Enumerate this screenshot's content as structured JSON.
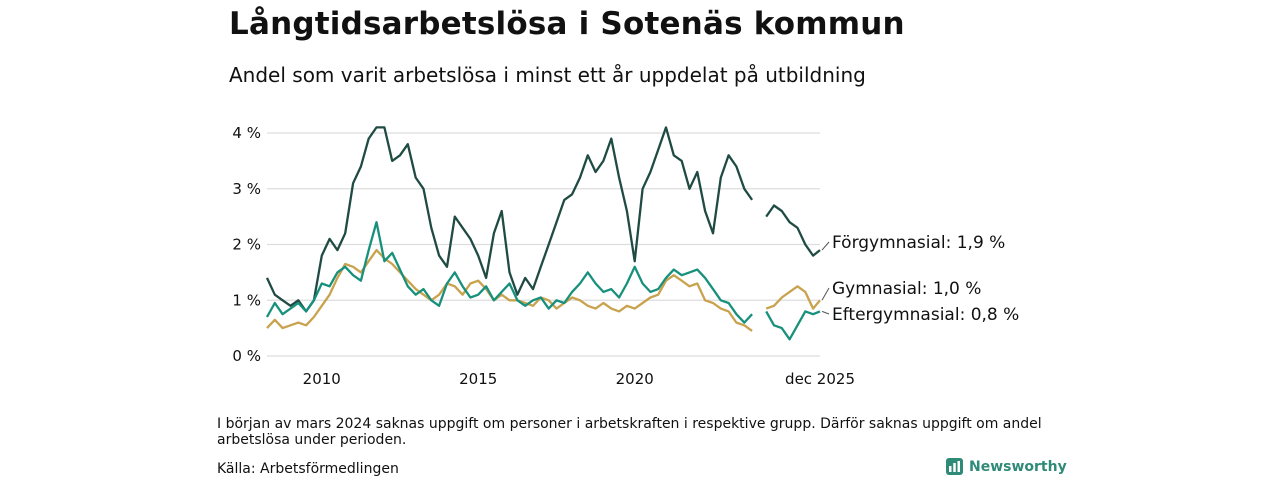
{
  "header": {
    "title": "Långtidsarbetslösa i Sotenäs kommun",
    "subtitle": "Andel som varit arbetslösa i minst ett år uppdelat på utbildning"
  },
  "footer": {
    "note": "I början av mars 2024 saknas uppgift om personer i arbetskraften i respektive grupp. Därför saknas uppgift om andel arbetslösa under perioden.",
    "source": "Källa: Arbetsförmedlingen",
    "brand": "Newsworthy"
  },
  "colors": {
    "forgymnasial": "#1f4b43",
    "gymnasial": "#c9a24e",
    "eftergymnasial": "#17907c",
    "grid": "#dddddd",
    "brand": "#2f8a78"
  },
  "chart_data": {
    "type": "line",
    "title": "Långtidsarbetslösa i Sotenäs kommun",
    "ylabel": "",
    "xlabel": "",
    "xlim": [
      2008.25,
      2025.92
    ],
    "ylim": [
      0,
      4
    ],
    "gap": [
      2023.8,
      2024.15
    ],
    "y_ticks": [
      {
        "value": 0,
        "label": "0 %"
      },
      {
        "value": 1,
        "label": "1 %"
      },
      {
        "value": 2,
        "label": "2 %"
      },
      {
        "value": 3,
        "label": "3 %"
      },
      {
        "value": 4,
        "label": "4 %"
      }
    ],
    "x_ticks": [
      {
        "value": 2010,
        "label": "2010"
      },
      {
        "value": 2015,
        "label": "2015"
      },
      {
        "value": 2020,
        "label": "2020"
      },
      {
        "value": 2025.92,
        "label": "dec 2025"
      }
    ],
    "series": [
      {
        "name": "Förgymnasial",
        "color_key": "forgymnasial",
        "end_label": "Förgymnasial: 1,9 %",
        "points": [
          [
            2008.25,
            1.4
          ],
          [
            2008.5,
            1.1
          ],
          [
            2008.75,
            1.0
          ],
          [
            2009.0,
            0.9
          ],
          [
            2009.25,
            1.0
          ],
          [
            2009.5,
            0.8
          ],
          [
            2009.75,
            1.0
          ],
          [
            2010.0,
            1.8
          ],
          [
            2010.25,
            2.1
          ],
          [
            2010.5,
            1.9
          ],
          [
            2010.75,
            2.2
          ],
          [
            2011.0,
            3.1
          ],
          [
            2011.25,
            3.4
          ],
          [
            2011.5,
            3.9
          ],
          [
            2011.75,
            4.1
          ],
          [
            2012.0,
            4.1
          ],
          [
            2012.25,
            3.5
          ],
          [
            2012.5,
            3.6
          ],
          [
            2012.75,
            3.8
          ],
          [
            2013.0,
            3.2
          ],
          [
            2013.25,
            3.0
          ],
          [
            2013.5,
            2.3
          ],
          [
            2013.75,
            1.8
          ],
          [
            2014.0,
            1.6
          ],
          [
            2014.25,
            2.5
          ],
          [
            2014.5,
            2.3
          ],
          [
            2014.75,
            2.1
          ],
          [
            2015.0,
            1.8
          ],
          [
            2015.25,
            1.4
          ],
          [
            2015.5,
            2.2
          ],
          [
            2015.75,
            2.6
          ],
          [
            2016.0,
            1.5
          ],
          [
            2016.25,
            1.1
          ],
          [
            2016.5,
            1.4
          ],
          [
            2016.75,
            1.2
          ],
          [
            2017.0,
            1.6
          ],
          [
            2017.25,
            2.0
          ],
          [
            2017.5,
            2.4
          ],
          [
            2017.75,
            2.8
          ],
          [
            2018.0,
            2.9
          ],
          [
            2018.25,
            3.2
          ],
          [
            2018.5,
            3.6
          ],
          [
            2018.75,
            3.3
          ],
          [
            2019.0,
            3.5
          ],
          [
            2019.25,
            3.9
          ],
          [
            2019.5,
            3.2
          ],
          [
            2019.75,
            2.6
          ],
          [
            2020.0,
            1.7
          ],
          [
            2020.25,
            3.0
          ],
          [
            2020.5,
            3.3
          ],
          [
            2020.75,
            3.7
          ],
          [
            2021.0,
            4.1
          ],
          [
            2021.25,
            3.6
          ],
          [
            2021.5,
            3.5
          ],
          [
            2021.75,
            3.0
          ],
          [
            2022.0,
            3.3
          ],
          [
            2022.25,
            2.6
          ],
          [
            2022.5,
            2.2
          ],
          [
            2022.75,
            3.2
          ],
          [
            2023.0,
            3.6
          ],
          [
            2023.25,
            3.4
          ],
          [
            2023.5,
            3.0
          ],
          [
            2023.75,
            2.8
          ],
          [
            2024.2,
            2.5
          ],
          [
            2024.45,
            2.7
          ],
          [
            2024.7,
            2.6
          ],
          [
            2024.95,
            2.4
          ],
          [
            2025.2,
            2.3
          ],
          [
            2025.45,
            2.0
          ],
          [
            2025.7,
            1.8
          ],
          [
            2025.92,
            1.9
          ]
        ]
      },
      {
        "name": "Gymnasial",
        "color_key": "gymnasial",
        "end_label": "Gymnasial: 1,0 %",
        "points": [
          [
            2008.25,
            0.5
          ],
          [
            2008.5,
            0.65
          ],
          [
            2008.75,
            0.5
          ],
          [
            2009.0,
            0.55
          ],
          [
            2009.25,
            0.6
          ],
          [
            2009.5,
            0.55
          ],
          [
            2009.75,
            0.7
          ],
          [
            2010.0,
            0.9
          ],
          [
            2010.25,
            1.1
          ],
          [
            2010.5,
            1.4
          ],
          [
            2010.75,
            1.65
          ],
          [
            2011.0,
            1.6
          ],
          [
            2011.25,
            1.5
          ],
          [
            2011.5,
            1.7
          ],
          [
            2011.75,
            1.9
          ],
          [
            2012.0,
            1.75
          ],
          [
            2012.25,
            1.65
          ],
          [
            2012.5,
            1.5
          ],
          [
            2012.75,
            1.35
          ],
          [
            2013.0,
            1.2
          ],
          [
            2013.25,
            1.1
          ],
          [
            2013.5,
            1.0
          ],
          [
            2013.75,
            1.1
          ],
          [
            2014.0,
            1.3
          ],
          [
            2014.25,
            1.25
          ],
          [
            2014.5,
            1.1
          ],
          [
            2014.75,
            1.3
          ],
          [
            2015.0,
            1.35
          ],
          [
            2015.25,
            1.2
          ],
          [
            2015.5,
            1.0
          ],
          [
            2015.75,
            1.1
          ],
          [
            2016.0,
            1.0
          ],
          [
            2016.25,
            1.0
          ],
          [
            2016.5,
            0.95
          ],
          [
            2016.75,
            0.9
          ],
          [
            2017.0,
            1.05
          ],
          [
            2017.25,
            1.0
          ],
          [
            2017.5,
            0.85
          ],
          [
            2017.75,
            0.95
          ],
          [
            2018.0,
            1.05
          ],
          [
            2018.25,
            1.0
          ],
          [
            2018.5,
            0.9
          ],
          [
            2018.75,
            0.85
          ],
          [
            2019.0,
            0.95
          ],
          [
            2019.25,
            0.85
          ],
          [
            2019.5,
            0.8
          ],
          [
            2019.75,
            0.9
          ],
          [
            2020.0,
            0.85
          ],
          [
            2020.25,
            0.95
          ],
          [
            2020.5,
            1.05
          ],
          [
            2020.75,
            1.1
          ],
          [
            2021.0,
            1.35
          ],
          [
            2021.25,
            1.45
          ],
          [
            2021.5,
            1.35
          ],
          [
            2021.75,
            1.25
          ],
          [
            2022.0,
            1.3
          ],
          [
            2022.25,
            1.0
          ],
          [
            2022.5,
            0.95
          ],
          [
            2022.75,
            0.85
          ],
          [
            2023.0,
            0.8
          ],
          [
            2023.25,
            0.6
          ],
          [
            2023.5,
            0.55
          ],
          [
            2023.75,
            0.45
          ],
          [
            2024.2,
            0.85
          ],
          [
            2024.45,
            0.9
          ],
          [
            2024.7,
            1.05
          ],
          [
            2024.95,
            1.15
          ],
          [
            2025.2,
            1.25
          ],
          [
            2025.45,
            1.15
          ],
          [
            2025.7,
            0.85
          ],
          [
            2025.92,
            1.0
          ]
        ]
      },
      {
        "name": "Eftergymnasial",
        "color_key": "eftergymnasial",
        "end_label": "Eftergymnasial: 0,8 %",
        "points": [
          [
            2008.25,
            0.7
          ],
          [
            2008.5,
            0.95
          ],
          [
            2008.75,
            0.75
          ],
          [
            2009.0,
            0.85
          ],
          [
            2009.25,
            0.95
          ],
          [
            2009.5,
            0.8
          ],
          [
            2009.75,
            1.0
          ],
          [
            2010.0,
            1.3
          ],
          [
            2010.25,
            1.25
          ],
          [
            2010.5,
            1.5
          ],
          [
            2010.75,
            1.6
          ],
          [
            2011.0,
            1.45
          ],
          [
            2011.25,
            1.35
          ],
          [
            2011.5,
            1.9
          ],
          [
            2011.75,
            2.4
          ],
          [
            2012.0,
            1.7
          ],
          [
            2012.25,
            1.85
          ],
          [
            2012.5,
            1.55
          ],
          [
            2012.75,
            1.25
          ],
          [
            2013.0,
            1.1
          ],
          [
            2013.25,
            1.2
          ],
          [
            2013.5,
            1.0
          ],
          [
            2013.75,
            0.9
          ],
          [
            2014.0,
            1.3
          ],
          [
            2014.25,
            1.5
          ],
          [
            2014.5,
            1.25
          ],
          [
            2014.75,
            1.05
          ],
          [
            2015.0,
            1.1
          ],
          [
            2015.25,
            1.25
          ],
          [
            2015.5,
            1.0
          ],
          [
            2015.75,
            1.15
          ],
          [
            2016.0,
            1.3
          ],
          [
            2016.25,
            1.0
          ],
          [
            2016.5,
            0.9
          ],
          [
            2016.75,
            1.0
          ],
          [
            2017.0,
            1.05
          ],
          [
            2017.25,
            0.85
          ],
          [
            2017.5,
            1.0
          ],
          [
            2017.75,
            0.95
          ],
          [
            2018.0,
            1.15
          ],
          [
            2018.25,
            1.3
          ],
          [
            2018.5,
            1.5
          ],
          [
            2018.75,
            1.3
          ],
          [
            2019.0,
            1.15
          ],
          [
            2019.25,
            1.2
          ],
          [
            2019.5,
            1.05
          ],
          [
            2019.75,
            1.3
          ],
          [
            2020.0,
            1.6
          ],
          [
            2020.25,
            1.3
          ],
          [
            2020.5,
            1.15
          ],
          [
            2020.75,
            1.2
          ],
          [
            2021.0,
            1.4
          ],
          [
            2021.25,
            1.55
          ],
          [
            2021.5,
            1.45
          ],
          [
            2021.75,
            1.5
          ],
          [
            2022.0,
            1.55
          ],
          [
            2022.25,
            1.4
          ],
          [
            2022.5,
            1.2
          ],
          [
            2022.75,
            1.0
          ],
          [
            2023.0,
            0.95
          ],
          [
            2023.25,
            0.75
          ],
          [
            2023.5,
            0.6
          ],
          [
            2023.75,
            0.75
          ],
          [
            2024.2,
            0.8
          ],
          [
            2024.45,
            0.55
          ],
          [
            2024.7,
            0.5
          ],
          [
            2024.95,
            0.3
          ],
          [
            2025.2,
            0.55
          ],
          [
            2025.45,
            0.8
          ],
          [
            2025.7,
            0.75
          ],
          [
            2025.92,
            0.8
          ]
        ]
      }
    ]
  }
}
